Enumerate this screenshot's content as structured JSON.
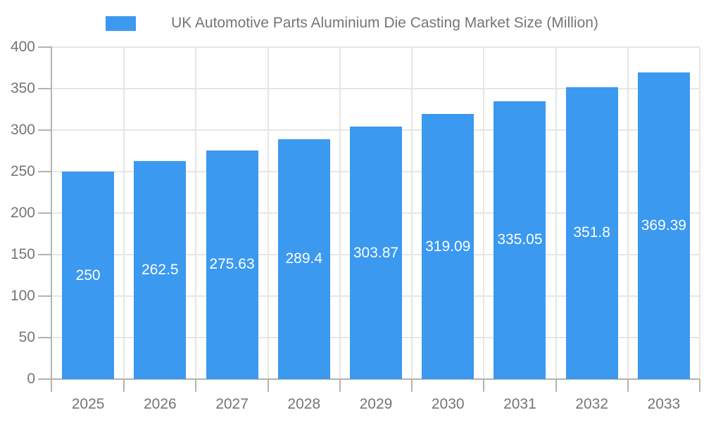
{
  "legend": {
    "label": "UK Automotive Parts Aluminium Die Casting Market Size (Million)"
  },
  "colors": {
    "bar": "#3B99F0",
    "axis_line": "#b3b3b3",
    "grid_line": "#e6e6e6",
    "tick_label": "#757575",
    "title_text": "#757575",
    "value_label": "#ffffff",
    "background": "#ffffff"
  },
  "chart_data": {
    "type": "bar",
    "title": "UK Automotive Parts Aluminium Die Casting Market Size (Million)",
    "categories": [
      "2025",
      "2026",
      "2027",
      "2028",
      "2029",
      "2030",
      "2031",
      "2032",
      "2033"
    ],
    "values": [
      250,
      262.5,
      275.63,
      289.4,
      303.87,
      319.09,
      335.05,
      351.8,
      369.39
    ],
    "value_labels": [
      "250",
      "262.5",
      "275.63",
      "289.4",
      "303.87",
      "319.09",
      "335.05",
      "351.8",
      "369.39"
    ],
    "series": [
      {
        "name": "UK Automotive Parts Aluminium Die Casting Market Size (Million)",
        "values": [
          250,
          262.5,
          275.63,
          289.4,
          303.87,
          319.09,
          335.05,
          351.8,
          369.39
        ]
      }
    ],
    "xlabel": "",
    "ylabel": "",
    "ylim": [
      0,
      400
    ],
    "yticks": [
      0,
      50,
      100,
      150,
      200,
      250,
      300,
      350,
      400
    ],
    "grid": true,
    "legend_position": "top",
    "value_label_position": "inside-center"
  }
}
